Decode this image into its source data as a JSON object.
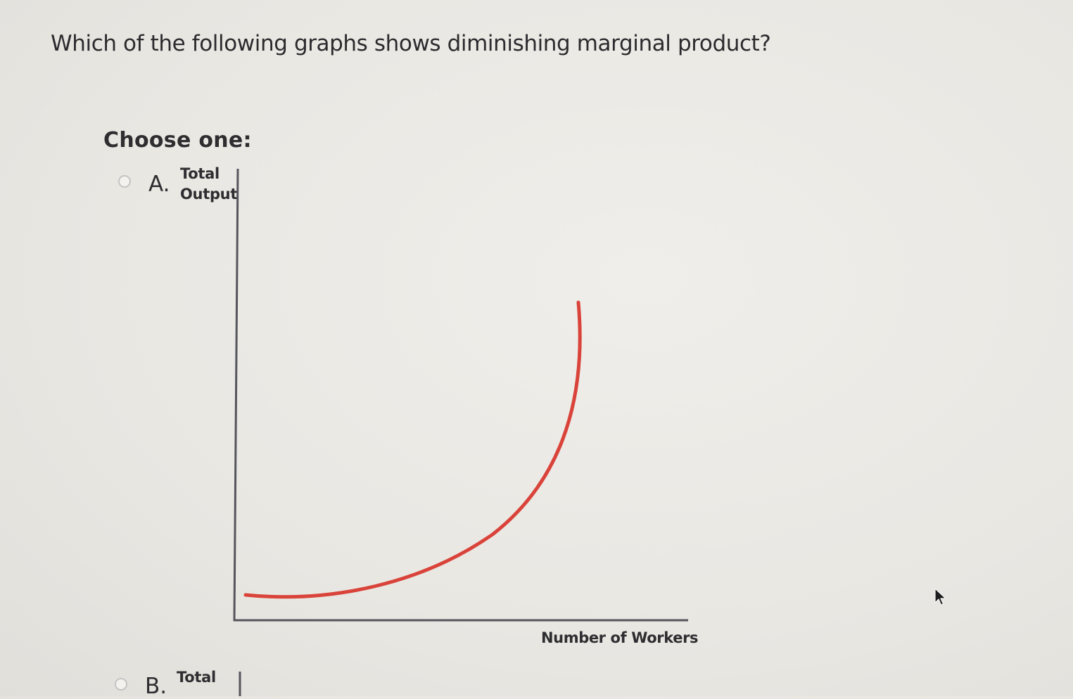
{
  "question": {
    "text": "Which of the following graphs shows diminishing marginal product?"
  },
  "prompt": {
    "label": "Choose one:"
  },
  "options": [
    {
      "letter": "A.",
      "selected": false,
      "graph": {
        "y_label_line1": "Total",
        "y_label_line2": "Output",
        "x_label": "Number of Workers",
        "curve_color": "#d9433a",
        "curve_shape": "convex-increasing"
      }
    },
    {
      "letter": "B.",
      "selected": false,
      "graph": {
        "y_label_line1": "Total"
      }
    }
  ],
  "colors": {
    "axis": "#55555c",
    "text": "#2e2e31",
    "background": "#ecebe6"
  },
  "icons": {
    "radio": "radio-button-unselected-icon",
    "cursor": "mouse-pointer-icon"
  }
}
